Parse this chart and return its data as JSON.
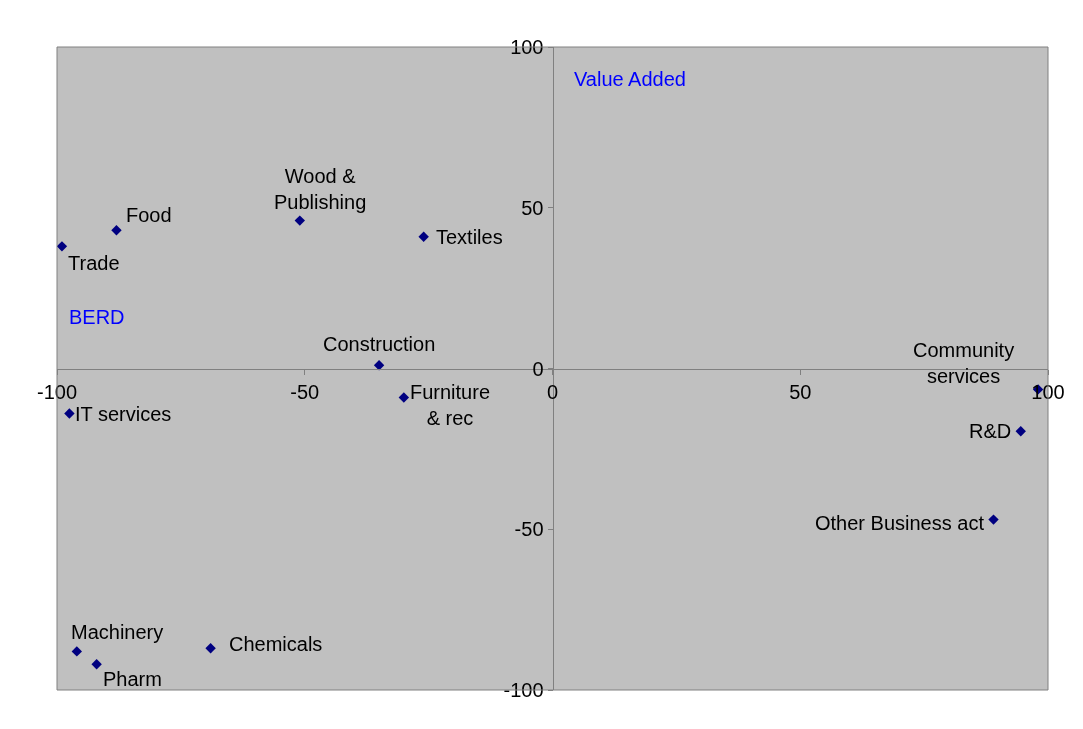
{
  "chart_data": {
    "type": "scatter",
    "xlabel": "BERD",
    "ylabel": "Value Added",
    "x": [
      -99,
      -88,
      -51,
      -26,
      -35,
      -30,
      -97.5,
      98,
      94.5,
      89,
      -96,
      -92,
      -69
    ],
    "values": [
      38,
      43,
      46,
      41,
      1,
      -9,
      -14,
      -6.5,
      -19.5,
      -47,
      -88,
      -92,
      -87
    ],
    "color": "#000080",
    "marker": "diamond",
    "xlim": [
      -100,
      100
    ],
    "ylim": [
      -100,
      100
    ],
    "xticks": [
      -100,
      -50,
      0,
      50,
      100
    ],
    "yticks": [
      -100,
      -50,
      0,
      50,
      100
    ],
    "grid": false,
    "annotations": [
      {
        "text": "Trade",
        "x": -99,
        "y": 38
      },
      {
        "text": "Food",
        "x": -88,
        "y": 43
      },
      {
        "text": "Wood &\nPublishing",
        "x": -51,
        "y": 46
      },
      {
        "text": "Textiles",
        "x": -26,
        "y": 41
      },
      {
        "text": "Construction",
        "x": -35,
        "y": 1
      },
      {
        "text": "Furniture\n& rec",
        "x": -30,
        "y": -9
      },
      {
        "text": "IT services",
        "x": -97.5,
        "y": -14
      },
      {
        "text": "Community\nservices",
        "x": 98,
        "y": -6.5
      },
      {
        "text": "R&D",
        "x": 94.5,
        "y": -19.5
      },
      {
        "text": "Other Business act",
        "x": 89,
        "y": -47
      },
      {
        "text": "Machinery",
        "x": -96,
        "y": -88
      },
      {
        "text": "Pharm",
        "x": -92,
        "y": -92
      },
      {
        "text": "Chemicals",
        "x": -69,
        "y": -87
      }
    ]
  }
}
